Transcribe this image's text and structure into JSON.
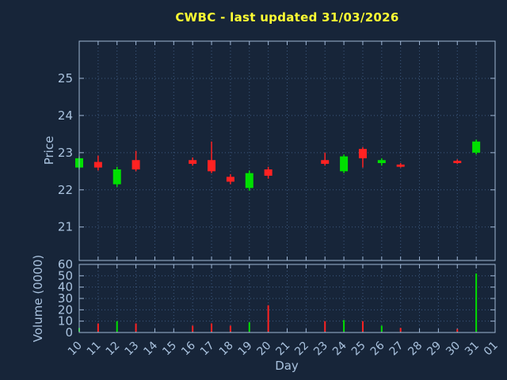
{
  "colors": {
    "background": "#172539",
    "grid": "#3e5a80",
    "border": "#9fb6d4",
    "axis_text": "#a9c2de",
    "title": "#ffff33",
    "up": "#00e000",
    "down": "#ff2222"
  },
  "chart_data": {
    "type": "candlestick",
    "title": "CWBC - last updated 31/03/2026",
    "xlabel": "Day",
    "ylabel": "Price",
    "ylabel2": "Volume (0000)",
    "x_ticks": [
      "10",
      "11",
      "12",
      "13",
      "14",
      "15",
      "16",
      "17",
      "18",
      "19",
      "20",
      "21",
      "22",
      "23",
      "24",
      "25",
      "26",
      "27",
      "28",
      "29",
      "30",
      "31",
      "01"
    ],
    "price_ticks": [
      21,
      22,
      23,
      24,
      25
    ],
    "price_range": [
      20.1,
      26.0
    ],
    "volume_ticks": [
      0,
      10,
      20,
      30,
      40,
      50,
      60
    ],
    "volume_range": [
      0,
      60
    ],
    "grid": true,
    "legend": "none",
    "candles": [
      {
        "day": "10",
        "open": 22.6,
        "high": 22.9,
        "low": 22.55,
        "close": 22.85,
        "volume": 4
      },
      {
        "day": "11",
        "open": 22.75,
        "high": 22.92,
        "low": 22.52,
        "close": 22.6,
        "volume": 8
      },
      {
        "day": "12",
        "open": 22.15,
        "high": 22.62,
        "low": 22.08,
        "close": 22.55,
        "volume": 10
      },
      {
        "day": "13",
        "open": 22.8,
        "high": 23.05,
        "low": 22.5,
        "close": 22.55,
        "volume": 8
      },
      {
        "day": "16",
        "open": 22.8,
        "high": 22.87,
        "low": 22.65,
        "close": 22.7,
        "volume": 6
      },
      {
        "day": "17",
        "open": 22.8,
        "high": 23.3,
        "low": 22.45,
        "close": 22.5,
        "volume": 8
      },
      {
        "day": "18",
        "open": 22.35,
        "high": 22.42,
        "low": 22.15,
        "close": 22.22,
        "volume": 6
      },
      {
        "day": "19",
        "open": 22.05,
        "high": 22.52,
        "low": 21.98,
        "close": 22.45,
        "volume": 9
      },
      {
        "day": "20",
        "open": 22.55,
        "high": 22.62,
        "low": 22.3,
        "close": 22.38,
        "volume": 24
      },
      {
        "day": "23",
        "open": 22.8,
        "high": 23.0,
        "low": 22.65,
        "close": 22.7,
        "volume": 10
      },
      {
        "day": "24",
        "open": 22.5,
        "high": 22.95,
        "low": 22.45,
        "close": 22.9,
        "volume": 11
      },
      {
        "day": "25",
        "open": 23.1,
        "high": 23.15,
        "low": 22.6,
        "close": 22.85,
        "volume": 10
      },
      {
        "day": "26",
        "open": 22.72,
        "high": 22.85,
        "low": 22.65,
        "close": 22.8,
        "volume": 6
      },
      {
        "day": "27",
        "open": 22.68,
        "high": 22.72,
        "low": 22.6,
        "close": 22.62,
        "volume": 4
      },
      {
        "day": "30",
        "open": 22.78,
        "high": 22.82,
        "low": 22.7,
        "close": 22.72,
        "volume": 3
      },
      {
        "day": "31",
        "open": 23.0,
        "high": 23.35,
        "low": 22.95,
        "close": 23.3,
        "volume": 52
      }
    ]
  }
}
